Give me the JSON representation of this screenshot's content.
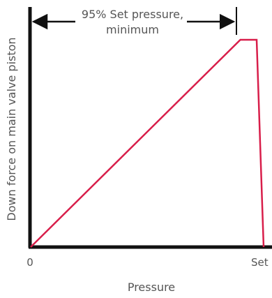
{
  "chart_data": {
    "type": "line",
    "title": "",
    "xlabel": "Pressure",
    "ylabel": "Down force on main valve piston",
    "x_ticks": [
      "0",
      "Set"
    ],
    "x_unit": "fraction of set pressure",
    "y_unit": "fraction of maximum down force",
    "xlim": [
      0,
      1.0
    ],
    "ylim": [
      0,
      1.0
    ],
    "grid": false,
    "line_color": "#d81e4a",
    "axis_color": "#111111",
    "series": [
      {
        "x": [
          0,
          0.9,
          0.97,
          1.0
        ],
        "y": [
          0,
          1.0,
          1.0,
          0
        ]
      }
    ],
    "annotation": {
      "line1": "95% Set pressure,",
      "line2": "minimum",
      "span": [
        0,
        0.97
      ]
    }
  }
}
